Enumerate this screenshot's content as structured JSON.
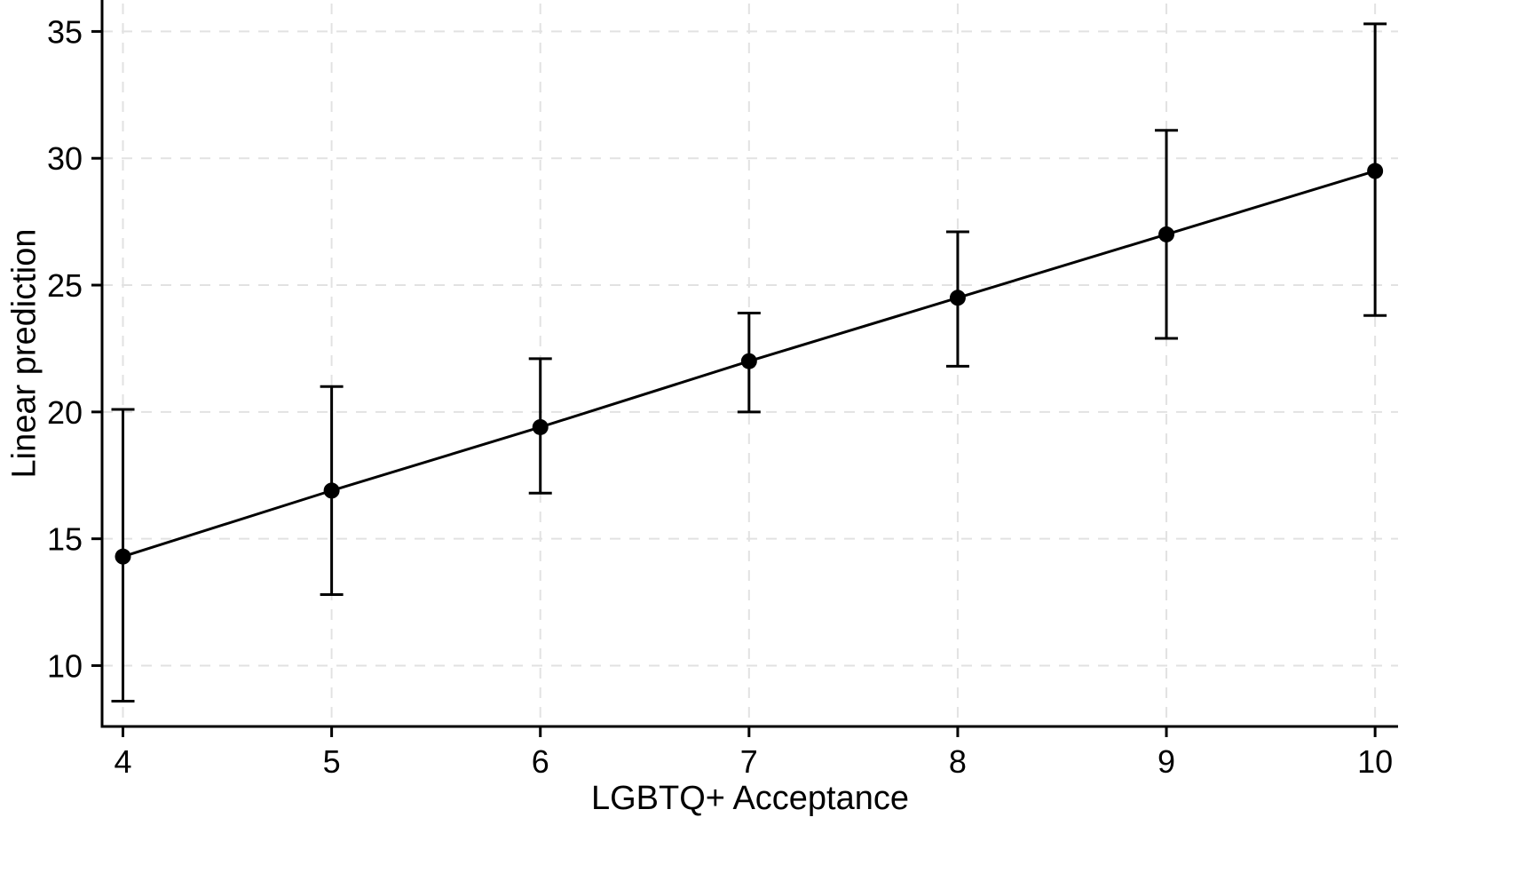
{
  "chart_data": {
    "type": "line",
    "subtype": "point-estimates-with-error-bars",
    "title": "",
    "xlabel": "LGBTQ+ Acceptance",
    "ylabel": "Linear prediction",
    "x": [
      4,
      5,
      6,
      7,
      8,
      9,
      10
    ],
    "y": [
      14.3,
      16.9,
      19.4,
      22.0,
      24.5,
      27.0,
      29.5
    ],
    "ci_low": [
      8.6,
      12.8,
      16.8,
      20.0,
      21.8,
      22.9,
      23.8
    ],
    "ci_high": [
      20.1,
      21.0,
      22.1,
      23.9,
      27.1,
      31.1,
      35.3
    ],
    "xticks": [
      4,
      5,
      6,
      7,
      8,
      9,
      10
    ],
    "yticks": [
      10,
      15,
      20,
      25,
      30,
      35
    ],
    "xlim": [
      3.9,
      10.11
    ],
    "ylim": [
      7.6,
      36.1
    ],
    "grid": true,
    "grid_style": "dashed",
    "legend": "none",
    "colors": {
      "line": "#000000",
      "marker": "#000000",
      "error_bar": "#000000",
      "axis": "#000000",
      "grid": "#e2e2e2",
      "background": "#ffffff"
    }
  }
}
